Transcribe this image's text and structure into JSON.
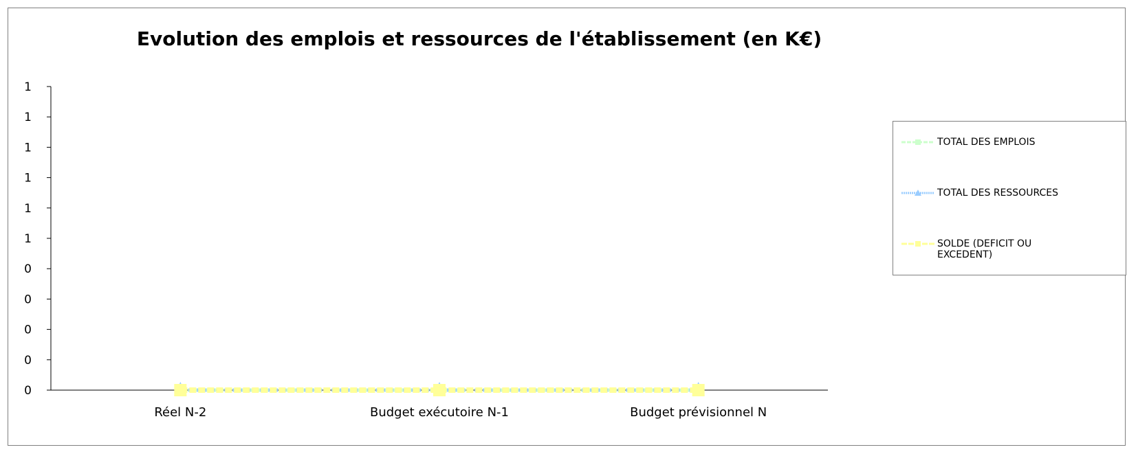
{
  "chart_data": {
    "type": "line",
    "title": "Evolution des emplois et ressources de l'établissement (en K€)",
    "categories": [
      "Réel N-2",
      "Budget exécutoire N-1",
      "Budget prévisionnel N"
    ],
    "y_tick_labels": [
      "0",
      "0",
      "0",
      "0",
      "0",
      "1",
      "1",
      "1",
      "1",
      "1",
      "1"
    ],
    "ylim": [
      0,
      1
    ],
    "grid": false,
    "legend_position": "right",
    "series": [
      {
        "name": "TOTAL DES EMPLOIS",
        "values": [
          0,
          0,
          0
        ],
        "color": "#ccffcc",
        "marker": "square"
      },
      {
        "name": "TOTAL DES RESSOURCES",
        "values": [
          0,
          0,
          0
        ],
        "color": "#99ccff",
        "marker": "triangle"
      },
      {
        "name": "SOLDE (DEFICIT OU EXCEDENT)",
        "values": [
          0,
          0,
          0
        ],
        "color": "#ffff99",
        "marker": "square"
      }
    ]
  }
}
